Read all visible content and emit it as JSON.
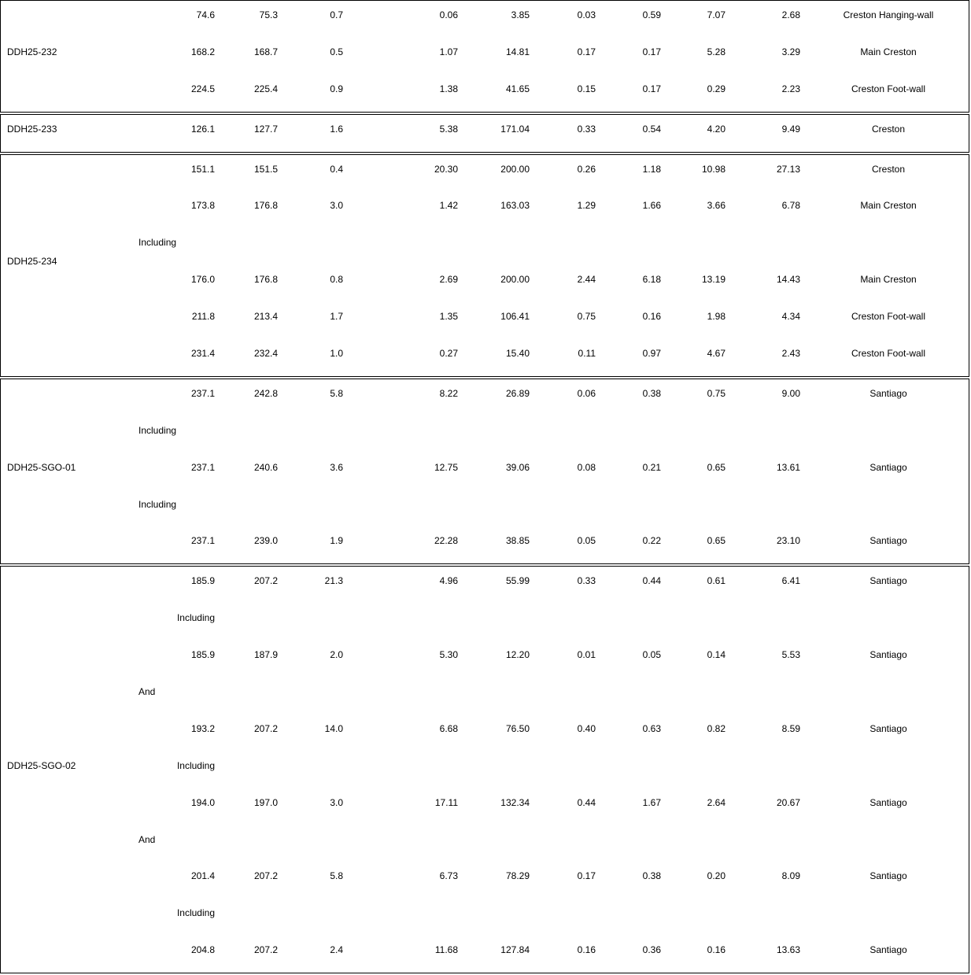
{
  "groups": [
    {
      "hole": "DDH25-232",
      "rows": [
        {
          "from": "74.6",
          "to": "75.3",
          "width": "0.7",
          "au": "0.06",
          "ag": "3.85",
          "cu": "0.03",
          "pb": "0.59",
          "zn": "7.07",
          "aueq": "2.68",
          "zone": "Creston Hanging-wall"
        },
        {
          "from": "168.2",
          "to": "168.7",
          "width": "0.5",
          "au": "1.07",
          "ag": "14.81",
          "cu": "0.17",
          "pb": "0.17",
          "zn": "5.28",
          "aueq": "3.29",
          "zone": "Main Creston"
        },
        {
          "from": "224.5",
          "to": "225.4",
          "width": "0.9",
          "au": "1.38",
          "ag": "41.65",
          "cu": "0.15",
          "pb": "0.17",
          "zn": "0.29",
          "aueq": "2.23",
          "zone": "Creston Foot-wall"
        }
      ]
    },
    {
      "hole": "DDH25-233",
      "rows": [
        {
          "from": "126.1",
          "to": "127.7",
          "width": "1.6",
          "au": "5.38",
          "ag": "171.04",
          "cu": "0.33",
          "pb": "0.54",
          "zn": "4.20",
          "aueq": "9.49",
          "zone": "Creston"
        }
      ]
    },
    {
      "hole": "DDH25-234",
      "rows": [
        {
          "from": "151.1",
          "to": "151.5",
          "width": "0.4",
          "au": "20.30",
          "ag": "200.00",
          "cu": "0.26",
          "pb": "1.18",
          "zn": "10.98",
          "aueq": "27.13",
          "zone": "Creston"
        },
        {
          "from": "173.8",
          "to": "176.8",
          "width": "3.0",
          "au": "1.42",
          "ag": "163.03",
          "cu": "1.29",
          "pb": "1.66",
          "zn": "3.66",
          "aueq": "6.78",
          "zone": "Main Creston"
        },
        {
          "sub": "Including"
        },
        {
          "from": "176.0",
          "to": "176.8",
          "width": "0.8",
          "au": "2.69",
          "ag": "200.00",
          "cu": "2.44",
          "pb": "6.18",
          "zn": "13.19",
          "aueq": "14.43",
          "zone": "Main Creston"
        },
        {
          "from": "211.8",
          "to": "213.4",
          "width": "1.7",
          "au": "1.35",
          "ag": "106.41",
          "cu": "0.75",
          "pb": "0.16",
          "zn": "1.98",
          "aueq": "4.34",
          "zone": "Creston Foot-wall"
        },
        {
          "from": "231.4",
          "to": "232.4",
          "width": "1.0",
          "au": "0.27",
          "ag": "15.40",
          "cu": "0.11",
          "pb": "0.97",
          "zn": "4.67",
          "aueq": "2.43",
          "zone": "Creston Foot-wall"
        }
      ]
    },
    {
      "hole": "DDH25-SGO-01",
      "rows": [
        {
          "from": "237.1",
          "to": "242.8",
          "width": "5.8",
          "au": "8.22",
          "ag": "26.89",
          "cu": "0.06",
          "pb": "0.38",
          "zn": "0.75",
          "aueq": "9.00",
          "zone": "Santiago"
        },
        {
          "sub": "Including"
        },
        {
          "from": "237.1",
          "to": "240.6",
          "width": "3.6",
          "au": "12.75",
          "ag": "39.06",
          "cu": "0.08",
          "pb": "0.21",
          "zn": "0.65",
          "aueq": "13.61",
          "zone": "Santiago"
        },
        {
          "sub": "Including"
        },
        {
          "from": "237.1",
          "to": "239.0",
          "width": "1.9",
          "au": "22.28",
          "ag": "38.85",
          "cu": "0.05",
          "pb": "0.22",
          "zn": "0.65",
          "aueq": "23.10",
          "zone": "Santiago"
        }
      ]
    },
    {
      "hole": "DDH25-SGO-02",
      "rows": [
        {
          "from": "185.9",
          "to": "207.2",
          "width": "21.3",
          "au": "4.96",
          "ag": "55.99",
          "cu": "0.33",
          "pb": "0.44",
          "zn": "0.61",
          "aueq": "6.41",
          "zone": "Santiago"
        },
        {
          "from": "Including"
        },
        {
          "from": "185.9",
          "to": "187.9",
          "width": "2.0",
          "au": "5.30",
          "ag": "12.20",
          "cu": "0.01",
          "pb": "0.05",
          "zn": "0.14",
          "aueq": "5.53",
          "zone": "Santiago"
        },
        {
          "sub": "And"
        },
        {
          "from": "193.2",
          "to": "207.2",
          "width": "14.0",
          "au": "6.68",
          "ag": "76.50",
          "cu": "0.40",
          "pb": "0.63",
          "zn": "0.82",
          "aueq": "8.59",
          "zone": "Santiago"
        },
        {
          "from": "Including"
        },
        {
          "from": "194.0",
          "to": "197.0",
          "width": "3.0",
          "au": "17.11",
          "ag": "132.34",
          "cu": "0.44",
          "pb": "1.67",
          "zn": "2.64",
          "aueq": "20.67",
          "zone": "Santiago"
        },
        {
          "sub": "And"
        },
        {
          "from": "201.4",
          "to": "207.2",
          "width": "5.8",
          "au": "6.73",
          "ag": "78.29",
          "cu": "0.17",
          "pb": "0.38",
          "zn": "0.20",
          "aueq": "8.09",
          "zone": "Santiago"
        },
        {
          "from": "Including"
        },
        {
          "from": "204.8",
          "to": "207.2",
          "width": "2.4",
          "au": "11.68",
          "ag": "127.84",
          "cu": "0.16",
          "pb": "0.36",
          "zn": "0.16",
          "aueq": "13.63",
          "zone": "Santiago"
        }
      ]
    }
  ]
}
